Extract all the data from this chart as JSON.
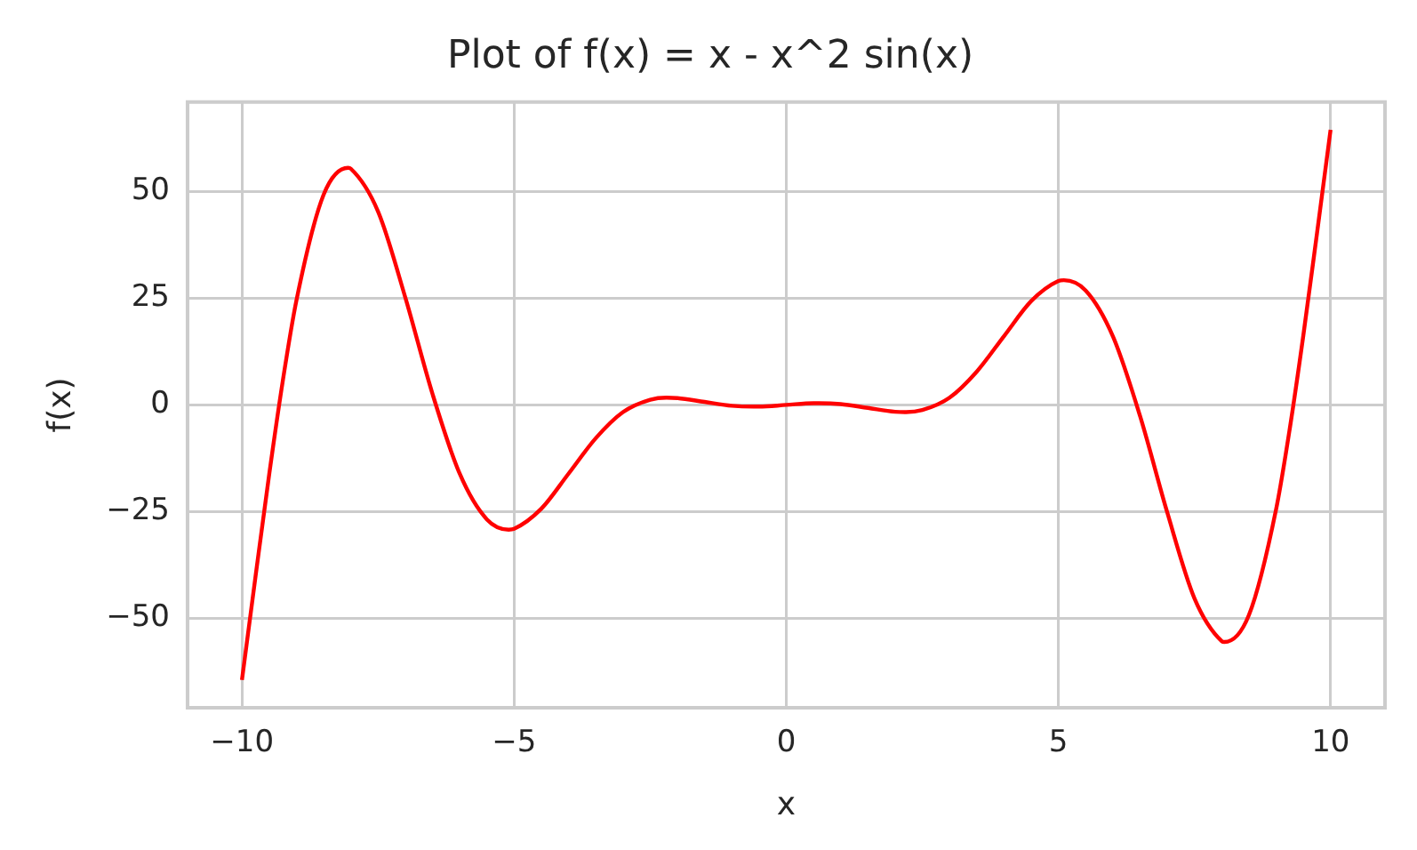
{
  "chart_data": {
    "type": "line",
    "title": "Plot of f(x) = x - x^2 sin(x)",
    "xlabel": "x",
    "ylabel": "f(x)",
    "x": [
      -10,
      -9.75,
      -9.5,
      -9.25,
      -9,
      -8.5,
      -8.05,
      -8,
      -7.5,
      -7,
      -6.5,
      -6,
      -5.5,
      -5.1,
      -5,
      -4.5,
      -4,
      -3.5,
      -3,
      -2.5,
      -2.2,
      -2,
      -1.5,
      -1,
      -0.6,
      -0.5,
      0,
      0.5,
      0.6,
      1,
      1.5,
      2,
      2.2,
      2.5,
      3,
      3.5,
      4,
      4.5,
      5,
      5.1,
      5.5,
      6,
      6.5,
      7,
      7.5,
      8,
      8.05,
      8.5,
      9,
      9.25,
      9.5,
      9.75,
      10
    ],
    "series": [
      {
        "color": "#ff0000",
        "values": [
          -64.4,
          -40.1,
          -16.3,
          5.6,
          24.4,
          49.2,
          55.5,
          55.3,
          45.3,
          25.2,
          2.6,
          -16.1,
          -26.8,
          -29.2,
          -29.0,
          -24.3,
          -16.1,
          -7.8,
          -1.7,
          1.2,
          1.7,
          1.6,
          0.7,
          -0.2,
          -0.4,
          -0.4,
          0,
          0.4,
          0.4,
          0.2,
          -0.7,
          -1.6,
          -1.7,
          -1.2,
          1.7,
          7.8,
          16.1,
          24.3,
          29.0,
          29.2,
          26.8,
          16.1,
          -2.6,
          -25.2,
          -45.3,
          -55.3,
          -55.5,
          -49.2,
          -24.4,
          -5.6,
          16.3,
          40.1,
          64.4
        ]
      }
    ],
    "xlim": [
      -11,
      11
    ],
    "ylim": [
      -70.9,
      70.9
    ],
    "xticks": [
      -10,
      -5,
      0,
      5,
      10
    ],
    "yticks": [
      -50,
      -25,
      0,
      25,
      50
    ],
    "grid": true,
    "legend": false
  }
}
